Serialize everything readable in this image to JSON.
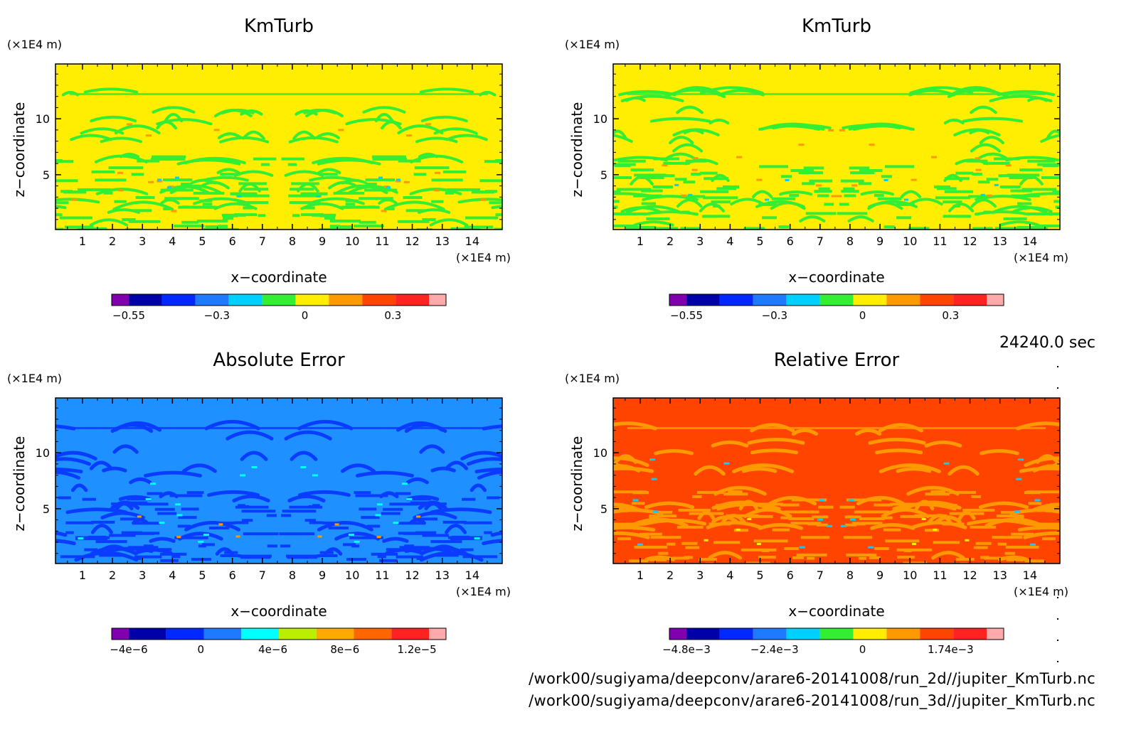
{
  "time_label": "24240.0 sec",
  "files": [
    "/work00/sugiyama/deepconv/arare6-20141008/run_2d//jupiter_KmTurb.nc",
    "/work00/sugiyama/deepconv/arare6-20141008/run_3d//jupiter_KmTurb.nc"
  ],
  "chart_data": [
    {
      "type": "heatmap",
      "title": "KmTurb",
      "xlabel": "x−coordinate",
      "ylabel": "z−coordinate",
      "x_unit": "(×1E4 m)",
      "y_unit": "(×1E4 m)",
      "xlim": [
        0.1,
        15.0
      ],
      "ylim": [
        0.1,
        14.9
      ],
      "xticks": [
        "1",
        "2",
        "3",
        "4",
        "5",
        "6",
        "7",
        "8",
        "9",
        "10",
        "11",
        "12",
        "13",
        "14"
      ],
      "yticks": [
        "5",
        "10"
      ],
      "colorbar": {
        "colors": [
          "#8000b0",
          "#0000a8",
          "#0028ff",
          "#1e7bff",
          "#00d0ff",
          "#33ee33",
          "#ffee00",
          "#ff9900",
          "#ff4400",
          "#ff2222",
          "#ffaaaa"
        ],
        "tick_labels": [
          "−0.55",
          "−0.3",
          "0",
          "0.3"
        ]
      },
      "background_color": "#ffee00",
      "pattern_colors": [
        "#33ee33",
        "#ff9900",
        "#00d0ff"
      ]
    },
    {
      "type": "heatmap",
      "title": "KmTurb",
      "xlabel": "x−coordinate",
      "ylabel": "z−coordinate",
      "x_unit": "(×1E4 m)",
      "y_unit": "(×1E4 m)",
      "xlim": [
        0.1,
        15.0
      ],
      "ylim": [
        0.1,
        14.9
      ],
      "xticks": [
        "1",
        "2",
        "3",
        "4",
        "5",
        "6",
        "7",
        "8",
        "9",
        "10",
        "11",
        "12",
        "13",
        "14"
      ],
      "yticks": [
        "5",
        "10"
      ],
      "colorbar": {
        "colors": [
          "#8000b0",
          "#0000a8",
          "#0028ff",
          "#1e7bff",
          "#00d0ff",
          "#33ee33",
          "#ffee00",
          "#ff9900",
          "#ff4400",
          "#ff2222",
          "#ffaaaa"
        ],
        "tick_labels": [
          "−0.55",
          "−0.3",
          "0",
          "0.3"
        ]
      },
      "background_color": "#ffee00",
      "pattern_colors": [
        "#33ee33",
        "#ff9900",
        "#00d0ff"
      ]
    },
    {
      "type": "heatmap",
      "title": "Absolute Error",
      "xlabel": "x−coordinate",
      "ylabel": "z−coordinate",
      "x_unit": "(×1E4 m)",
      "y_unit": "(×1E4 m)",
      "xlim": [
        0.1,
        15.0
      ],
      "ylim": [
        0.1,
        14.9
      ],
      "xticks": [
        "1",
        "2",
        "3",
        "4",
        "5",
        "6",
        "7",
        "8",
        "9",
        "10",
        "11",
        "12",
        "13",
        "14"
      ],
      "yticks": [
        "5",
        "10"
      ],
      "colorbar": {
        "colors": [
          "#8000b0",
          "#0000a8",
          "#0028ff",
          "#1e7bff",
          "#00ffff",
          "#bbee00",
          "#ffaa00",
          "#ff6600",
          "#ff2222",
          "#ffaaaa"
        ],
        "tick_labels": [
          "−4e−6",
          "0",
          "4e−6",
          "8e−6",
          "1.2e−5"
        ]
      },
      "background_color": "#1e90ff",
      "pattern_colors": [
        "#0a3cff",
        "#00ffff",
        "#ff9900"
      ]
    },
    {
      "type": "heatmap",
      "title": "Relative Error",
      "xlabel": "x−coordinate",
      "ylabel": "z−coordinate",
      "x_unit": "(×1E4 m)",
      "y_unit": "(×1E4 m)",
      "xlim": [
        0.1,
        15.0
      ],
      "ylim": [
        0.1,
        14.9
      ],
      "xticks": [
        "1",
        "2",
        "3",
        "4",
        "5",
        "6",
        "7",
        "8",
        "9",
        "10",
        "11",
        "12",
        "13",
        "14"
      ],
      "yticks": [
        "5",
        "10"
      ],
      "colorbar": {
        "colors": [
          "#8000b0",
          "#0000a8",
          "#0028ff",
          "#1e7bff",
          "#00d0ff",
          "#33ee33",
          "#ffee00",
          "#ff9900",
          "#ff4400",
          "#ff2222",
          "#ffaaaa"
        ],
        "tick_labels": [
          "−4.8e−3",
          "−2.4e−3",
          "0",
          "1.74e−3"
        ]
      },
      "background_color": "#ff4400",
      "pattern_colors": [
        "#ff9900",
        "#00d0ff",
        "#ffee00"
      ]
    }
  ]
}
